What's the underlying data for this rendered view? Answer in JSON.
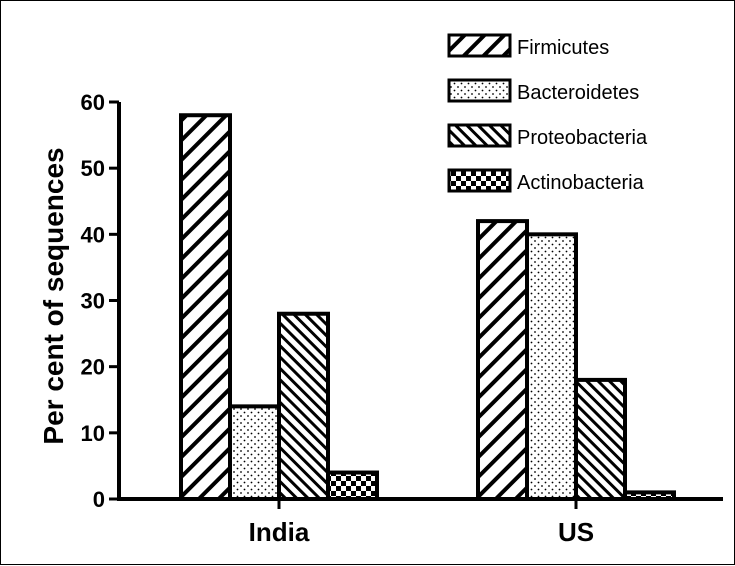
{
  "chart_data": {
    "type": "bar",
    "ylabel": "Per cent of sequences",
    "xlabel": "",
    "categories": [
      "India",
      "US"
    ],
    "ylim": [
      0,
      60
    ],
    "yticks": [
      0,
      10,
      20,
      30,
      40,
      50,
      60
    ],
    "legend_position": "top-right",
    "grid": false,
    "series": [
      {
        "name": "Firmicutes",
        "pattern": "diagonal-forward",
        "values": [
          58,
          42
        ]
      },
      {
        "name": "Bacteroidetes",
        "pattern": "dots",
        "values": [
          14,
          40
        ]
      },
      {
        "name": "Proteobacteria",
        "pattern": "diagonal-back",
        "values": [
          28,
          18
        ]
      },
      {
        "name": "Actinobacteria",
        "pattern": "checker",
        "values": [
          4,
          1
        ]
      }
    ]
  }
}
